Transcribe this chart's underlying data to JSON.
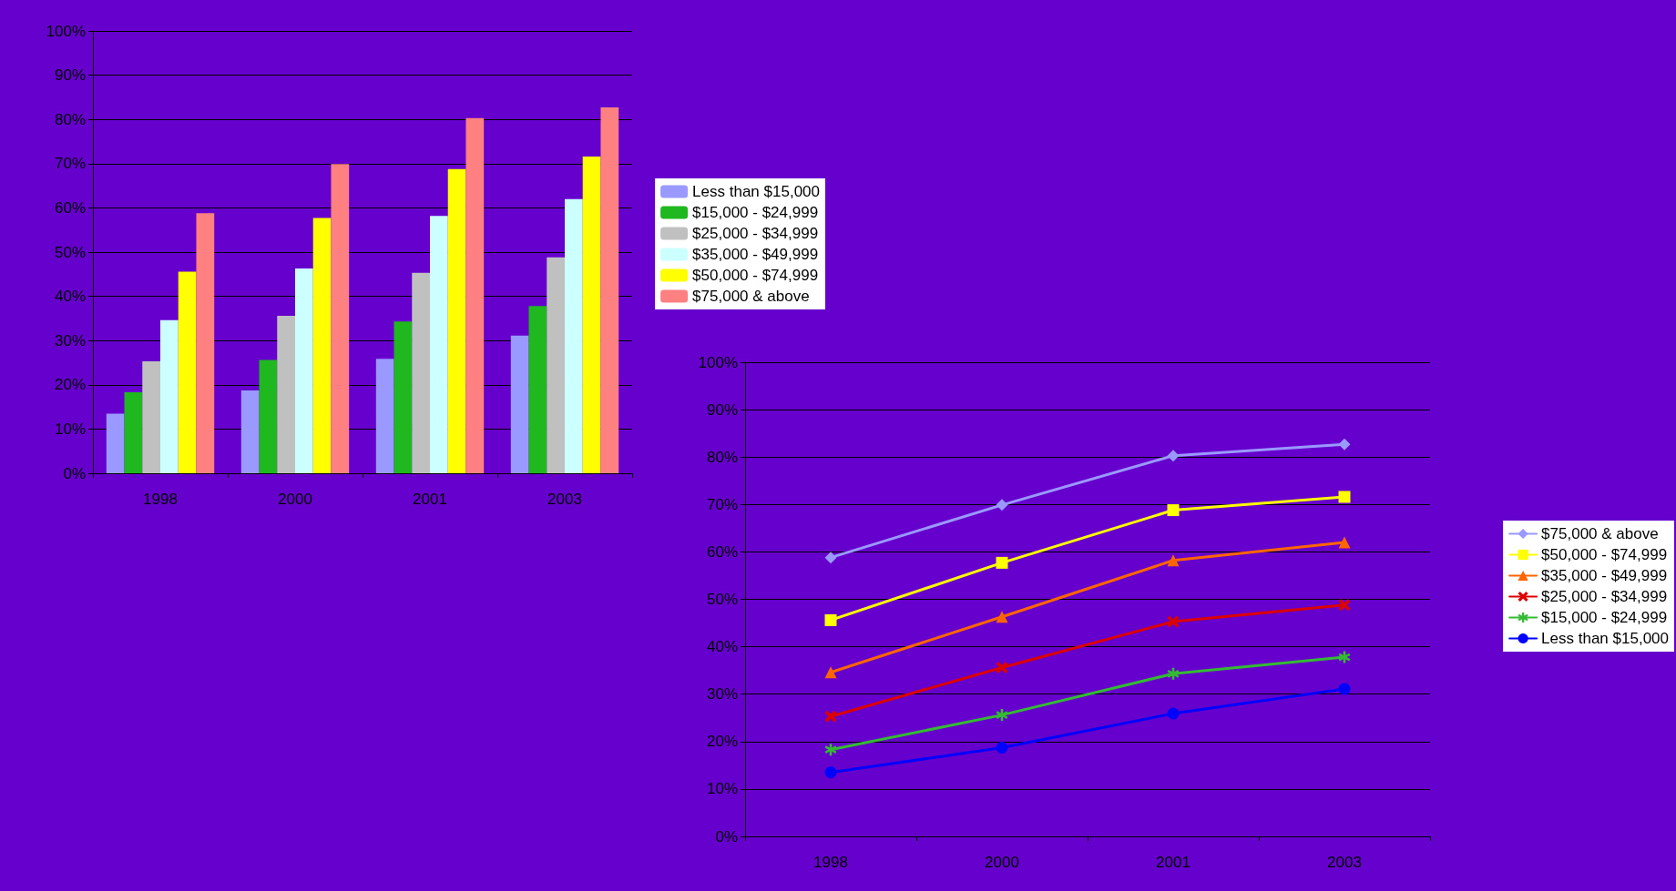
{
  "chart_data": [
    {
      "type": "bar",
      "categories": [
        "1998",
        "2000",
        "2001",
        "2003"
      ],
      "series": [
        {
          "name": "Less than $15,000",
          "color": "#9999ff",
          "values": [
            13.5,
            18.7,
            25.9,
            31.1
          ]
        },
        {
          "name": "$15,000 - $24,999",
          "color": "#1fb81f",
          "values": [
            18.3,
            25.6,
            34.3,
            37.8
          ]
        },
        {
          "name": "$25,000 - $34,999",
          "color": "#c0c0c0",
          "values": [
            25.3,
            35.6,
            45.3,
            48.8
          ]
        },
        {
          "name": "$35,000 - $49,999",
          "color": "#ccffff",
          "values": [
            34.6,
            46.3,
            58.2,
            62.0
          ]
        },
        {
          "name": "$50,000 - $74,999",
          "color": "#ffff00",
          "values": [
            45.6,
            57.7,
            68.8,
            71.6
          ]
        },
        {
          "name": "$75,000 & above",
          "color": "#ff8080",
          "values": [
            58.8,
            69.9,
            80.3,
            82.7
          ]
        }
      ],
      "ylim": [
        0,
        100
      ],
      "yticks": [
        {
          "value": 0,
          "label": "0%"
        },
        {
          "value": 10,
          "label": "10%"
        },
        {
          "value": 20,
          "label": "20%"
        },
        {
          "value": 30,
          "label": "30%"
        },
        {
          "value": 40,
          "label": "40%"
        },
        {
          "value": 50,
          "label": "50%"
        },
        {
          "value": 60,
          "label": "60%"
        },
        {
          "value": 70,
          "label": "70%"
        },
        {
          "value": 80,
          "label": "80%"
        },
        {
          "value": 90,
          "label": "90%"
        },
        {
          "value": 100,
          "label": "100%"
        }
      ],
      "grid": "y",
      "legend": "right"
    },
    {
      "type": "line",
      "categories": [
        "1998",
        "2000",
        "2001",
        "2003"
      ],
      "series": [
        {
          "name": "$75,000 & above",
          "color": "#9999ff",
          "marker": "diamond",
          "values": [
            58.8,
            69.9,
            80.3,
            82.7
          ]
        },
        {
          "name": "$50,000 - $74,999",
          "color": "#ffff00",
          "marker": "square",
          "values": [
            45.6,
            57.7,
            68.8,
            71.6
          ]
        },
        {
          "name": "$35,000 - $49,999",
          "color": "#ff6600",
          "marker": "triangle",
          "values": [
            34.6,
            46.3,
            58.2,
            62.0
          ]
        },
        {
          "name": "$25,000 - $34,999",
          "color": "#dd0000",
          "marker": "cross",
          "values": [
            25.3,
            35.6,
            45.3,
            48.8
          ]
        },
        {
          "name": "$15,000 - $24,999",
          "color": "#33bb33",
          "marker": "star",
          "values": [
            18.3,
            25.6,
            34.3,
            37.8
          ]
        },
        {
          "name": "Less than $15,000",
          "color": "#0000ff",
          "marker": "circle",
          "values": [
            13.5,
            18.7,
            25.9,
            31.1
          ]
        }
      ],
      "ylim": [
        0,
        100
      ],
      "yticks": [
        {
          "value": 0,
          "label": "0%"
        },
        {
          "value": 10,
          "label": "10%"
        },
        {
          "value": 20,
          "label": "20%"
        },
        {
          "value": 30,
          "label": "30%"
        },
        {
          "value": 40,
          "label": "40%"
        },
        {
          "value": 50,
          "label": "50%"
        },
        {
          "value": 60,
          "label": "60%"
        },
        {
          "value": 70,
          "label": "70%"
        },
        {
          "value": 80,
          "label": "80%"
        },
        {
          "value": 90,
          "label": "90%"
        },
        {
          "value": 100,
          "label": "100%"
        }
      ],
      "grid": "y",
      "legend": "right",
      "line_style": "solid"
    }
  ]
}
